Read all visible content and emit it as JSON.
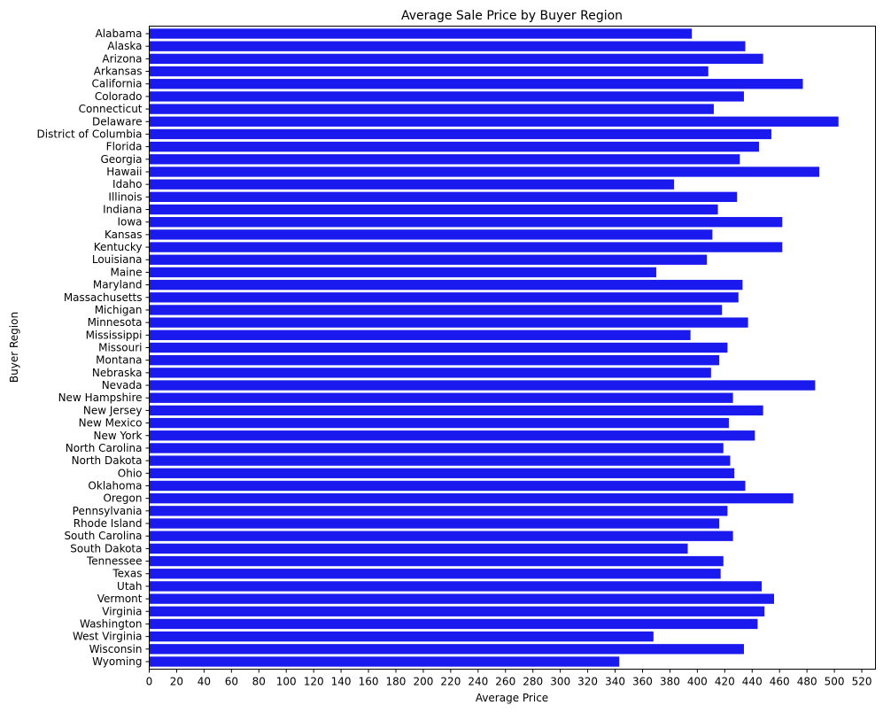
{
  "chart_data": {
    "type": "bar",
    "orientation": "horizontal",
    "title": "Average Sale Price by Buyer Region",
    "xlabel": "Average Price",
    "ylabel": "Buyer Region",
    "xlim": [
      0,
      530
    ],
    "xticks": [
      0,
      20,
      40,
      60,
      80,
      100,
      120,
      140,
      160,
      180,
      200,
      220,
      240,
      260,
      280,
      300,
      320,
      340,
      360,
      380,
      400,
      420,
      440,
      460,
      480,
      500,
      520
    ],
    "grid": false,
    "legend": "none",
    "bar_color": "#1a1aee",
    "categories": [
      "Alabama",
      "Alaska",
      "Arizona",
      "Arkansas",
      "California",
      "Colorado",
      "Connecticut",
      "Delaware",
      "District of Columbia",
      "Florida",
      "Georgia",
      "Hawaii",
      "Idaho",
      "Illinois",
      "Indiana",
      "Iowa",
      "Kansas",
      "Kentucky",
      "Louisiana",
      "Maine",
      "Maryland",
      "Massachusetts",
      "Michigan",
      "Minnesota",
      "Mississippi",
      "Missouri",
      "Montana",
      "Nebraska",
      "Nevada",
      "New Hampshire",
      "New Jersey",
      "New Mexico",
      "New York",
      "North Carolina",
      "North Dakota",
      "Ohio",
      "Oklahoma",
      "Oregon",
      "Pennsylvania",
      "Rhode Island",
      "South Carolina",
      "South Dakota",
      "Tennessee",
      "Texas",
      "Utah",
      "Vermont",
      "Virginia",
      "Washington",
      "West Virginia",
      "Wisconsin",
      "Wyoming"
    ],
    "values": [
      396,
      435,
      448,
      408,
      477,
      434,
      412,
      503,
      454,
      445,
      431,
      489,
      383,
      429,
      415,
      462,
      411,
      462,
      407,
      370,
      433,
      430,
      418,
      437,
      395,
      422,
      416,
      410,
      486,
      426,
      448,
      423,
      442,
      419,
      424,
      427,
      435,
      470,
      422,
      416,
      426,
      393,
      419,
      417,
      447,
      456,
      449,
      444,
      368,
      434,
      343
    ]
  }
}
